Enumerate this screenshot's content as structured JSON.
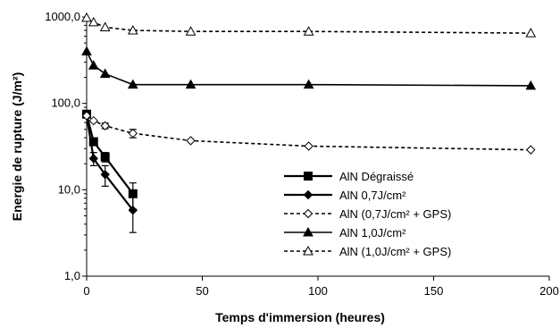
{
  "chart_data": {
    "type": "line",
    "title": "",
    "xlabel": "Temps d'immersion (heures)",
    "ylabel": "Energie de rupture (J/m²)",
    "xlim": [
      0,
      200
    ],
    "ylim": [
      1,
      1000
    ],
    "yscale": "log",
    "grid": false,
    "legend_position": "right",
    "xticks": [
      0,
      50,
      100,
      150,
      200
    ],
    "xtick_labels": [
      "0",
      "50",
      "100",
      "150",
      "200"
    ],
    "yticks": [
      1,
      10,
      100,
      1000
    ],
    "ytick_labels": [
      "1,0",
      "10,0",
      "100,0",
      "1000,0"
    ],
    "series": [
      {
        "name": "AlN Dégraissé",
        "line": "solid",
        "line_width": 2.2,
        "marker": "square",
        "marker_fill": "filled",
        "x": [
          0,
          3,
          8,
          20
        ],
        "y": [
          75,
          36,
          24,
          9
        ],
        "err": [
          0,
          0,
          3,
          3
        ]
      },
      {
        "name": "AlN 0,7J/cm²",
        "line": "solid",
        "line_width": 2.2,
        "marker": "diamond",
        "marker_fill": "filled",
        "x": [
          0,
          3,
          8,
          20
        ],
        "y": [
          72,
          23,
          15,
          5.8
        ],
        "err": [
          0,
          4,
          4,
          2.6
        ]
      },
      {
        "name": "AlN (0,7J/cm² + GPS)",
        "line": "dashed",
        "line_width": 1.6,
        "marker": "diamond",
        "marker_fill": "open",
        "x": [
          0,
          3,
          8,
          20,
          45,
          96,
          192
        ],
        "y": [
          72,
          63,
          55,
          45,
          37,
          32,
          29
        ],
        "err": [
          0,
          0,
          4,
          5,
          0,
          0,
          0
        ]
      },
      {
        "name": "AlN 1,0J/cm²",
        "line": "solid",
        "line_width": 1.6,
        "marker": "triangle",
        "marker_fill": "filled",
        "x": [
          0,
          3,
          8,
          20,
          45,
          96,
          192
        ],
        "y": [
          400,
          275,
          220,
          165,
          165,
          165,
          160
        ],
        "err": [
          0,
          0,
          0,
          0,
          0,
          0,
          0
        ]
      },
      {
        "name": "AlN (1,0J/cm² + GPS)",
        "line": "dashed",
        "line_width": 1.6,
        "marker": "triangle",
        "marker_fill": "open",
        "x": [
          0,
          3,
          8,
          20,
          45,
          96,
          192
        ],
        "y": [
          980,
          870,
          760,
          700,
          680,
          680,
          650
        ],
        "err": [
          0,
          0,
          0,
          0,
          0,
          0,
          0
        ]
      }
    ]
  }
}
